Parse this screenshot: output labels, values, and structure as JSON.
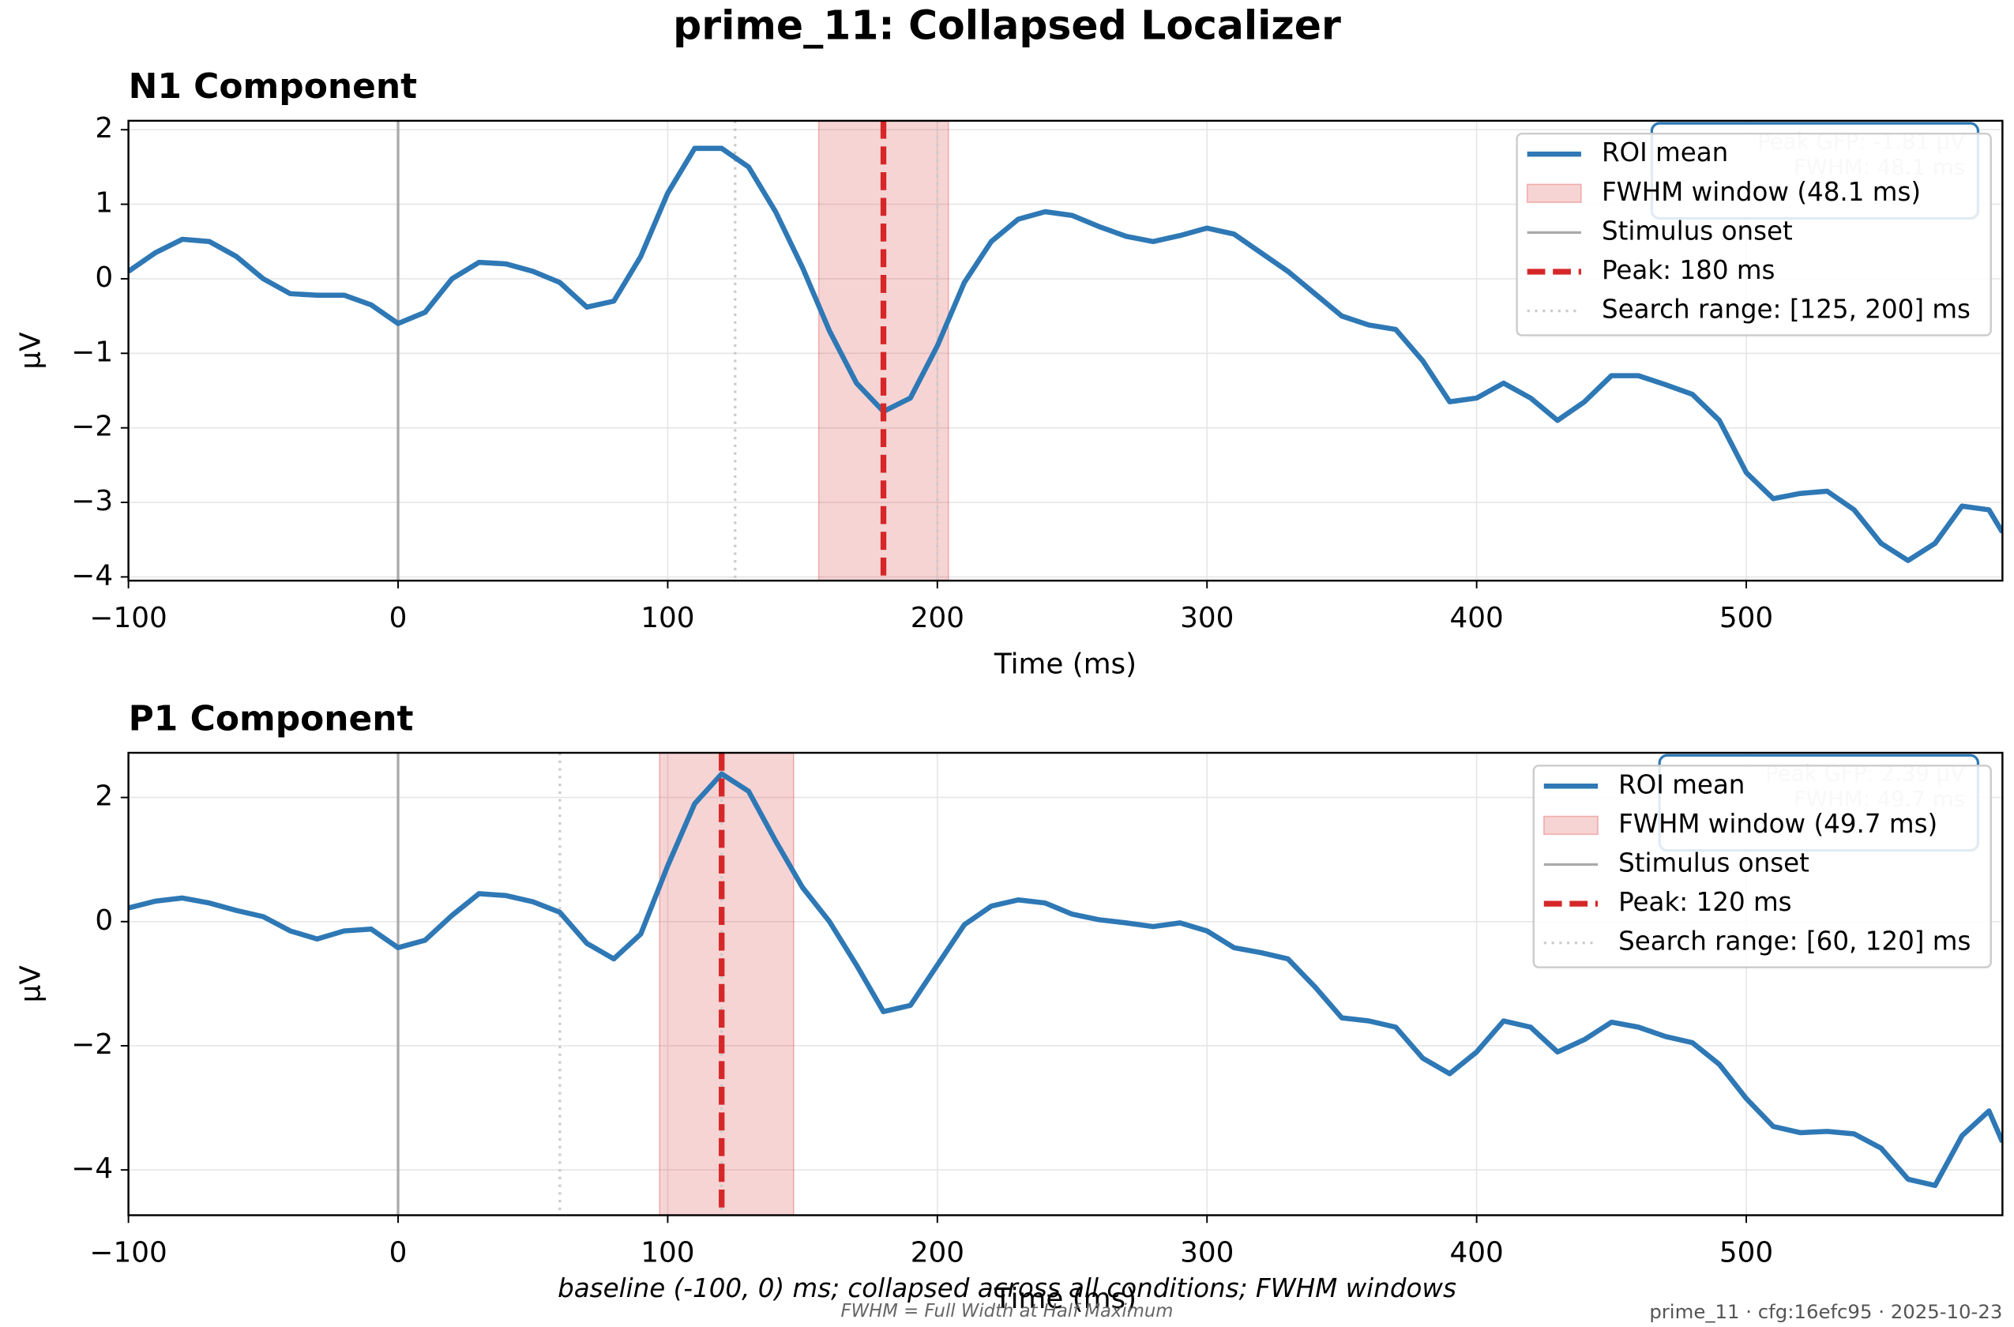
{
  "suptitle": "prime_11: Collapsed Localizer",
  "caption": "baseline (-100, 0) ms; collapsed across all conditions; FWHM windows",
  "footnote": "FWHM = Full Width at Half Maximum",
  "stamp": "prime_11 · cfg:16efc95 · 2025-10-23",
  "chart_data": [
    {
      "type": "line",
      "title": "N1 Component",
      "xlabel": "Time (ms)",
      "ylabel": "µV",
      "x": [
        -100,
        -90,
        -80,
        -70,
        -60,
        -50,
        -40,
        -30,
        -20,
        -10,
        0,
        10,
        20,
        30,
        40,
        50,
        60,
        70,
        80,
        90,
        100,
        110,
        120,
        130,
        140,
        150,
        160,
        170,
        180,
        190,
        200,
        210,
        220,
        230,
        240,
        250,
        260,
        270,
        280,
        290,
        300,
        310,
        320,
        330,
        340,
        350,
        360,
        370,
        380,
        390,
        400,
        410,
        420,
        430,
        440,
        450,
        460,
        470,
        480,
        490,
        500,
        510,
        520,
        530,
        540,
        550,
        560,
        570,
        580,
        590,
        595
      ],
      "series": [
        {
          "name": "ROI mean",
          "color": "#2e78b5",
          "values": [
            0.1,
            0.35,
            0.53,
            0.5,
            0.3,
            0.0,
            -0.2,
            -0.22,
            -0.22,
            -0.35,
            -0.6,
            -0.45,
            0.0,
            0.22,
            0.2,
            0.1,
            -0.05,
            -0.38,
            -0.3,
            0.3,
            1.15,
            1.75,
            1.75,
            1.5,
            0.9,
            0.15,
            -0.7,
            -1.4,
            -1.78,
            -1.6,
            -0.9,
            -0.05,
            0.5,
            0.8,
            0.9,
            0.85,
            0.7,
            0.57,
            0.5,
            0.58,
            0.68,
            0.6,
            0.35,
            0.1,
            -0.2,
            -0.5,
            -0.62,
            -0.68,
            -1.1,
            -1.65,
            -1.6,
            -1.4,
            -1.6,
            -1.9,
            -1.65,
            -1.3,
            -1.3,
            -1.42,
            -1.55,
            -1.9,
            -2.6,
            -2.95,
            -2.88,
            -2.85,
            -3.1,
            -3.55,
            -3.78,
            -3.55,
            -3.05,
            -3.1,
            -3.4
          ]
        }
      ],
      "fwhm_window": {
        "range": [
          156,
          204.1
        ],
        "label": "FWHM window (48.1 ms)",
        "color": "#d62728"
      },
      "onset": {
        "x": 0,
        "label": "Stimulus onset",
        "color": "#aaaaaa"
      },
      "peak": {
        "x": 180,
        "label": "Peak: 180 ms",
        "color": "#d62728"
      },
      "search_range": {
        "range": [
          125,
          200
        ],
        "label": "Search range: [125, 200] ms",
        "color": "#cccccc"
      },
      "annotation": [
        "Peak GFP: -1.81 µV",
        "FWHM: 48.1 ms"
      ],
      "xlim": [
        -100,
        595
      ],
      "xticks": [
        {
          "value": -100,
          "label": "−100"
        },
        0,
        100,
        200,
        300,
        400,
        500
      ],
      "ylim": [
        -4.05,
        2.12
      ],
      "yticks": [
        {
          "value": -4,
          "label": "−4"
        },
        {
          "value": -3,
          "label": "−3"
        },
        {
          "value": -2,
          "label": "−2"
        },
        {
          "value": -1,
          "label": "−1"
        },
        0,
        1,
        2
      ],
      "grid": true,
      "legend": "upper right"
    },
    {
      "type": "line",
      "title": "P1 Component",
      "xlabel": "Time (ms)",
      "ylabel": "µV",
      "x": [
        -100,
        -90,
        -80,
        -70,
        -60,
        -50,
        -40,
        -30,
        -20,
        -10,
        0,
        10,
        20,
        30,
        40,
        50,
        60,
        70,
        80,
        90,
        100,
        110,
        120,
        130,
        140,
        150,
        160,
        170,
        180,
        190,
        200,
        210,
        220,
        230,
        240,
        250,
        260,
        270,
        280,
        290,
        300,
        310,
        320,
        330,
        340,
        350,
        360,
        370,
        380,
        390,
        400,
        410,
        420,
        430,
        440,
        450,
        460,
        470,
        480,
        490,
        500,
        510,
        520,
        530,
        540,
        550,
        560,
        570,
        580,
        590,
        595
      ],
      "series": [
        {
          "name": "ROI mean",
          "color": "#2e78b5",
          "values": [
            0.22,
            0.33,
            0.38,
            0.3,
            0.18,
            0.08,
            -0.15,
            -0.28,
            -0.15,
            -0.12,
            -0.42,
            -0.3,
            0.1,
            0.45,
            0.42,
            0.32,
            0.15,
            -0.35,
            -0.6,
            -0.2,
            0.9,
            1.9,
            2.38,
            2.1,
            1.3,
            0.55,
            0.0,
            -0.7,
            -1.45,
            -1.35,
            -0.7,
            -0.05,
            0.25,
            0.35,
            0.3,
            0.12,
            0.03,
            -0.02,
            -0.08,
            -0.02,
            -0.15,
            -0.42,
            -0.5,
            -0.6,
            -1.05,
            -1.55,
            -1.6,
            -1.7,
            -2.2,
            -2.45,
            -2.1,
            -1.6,
            -1.7,
            -2.1,
            -1.9,
            -1.62,
            -1.7,
            -1.85,
            -1.95,
            -2.3,
            -2.85,
            -3.3,
            -3.4,
            -3.38,
            -3.42,
            -3.65,
            -4.15,
            -4.25,
            -3.45,
            -3.05,
            -3.55
          ]
        }
      ],
      "fwhm_window": {
        "range": [
          97,
          146.7
        ],
        "label": "FWHM window (49.7 ms)",
        "color": "#d62728"
      },
      "onset": {
        "x": 0,
        "label": "Stimulus onset",
        "color": "#aaaaaa"
      },
      "peak": {
        "x": 120,
        "label": "Peak: 120 ms",
        "color": "#d62728"
      },
      "search_range": {
        "range": [
          60,
          120
        ],
        "label": "Search range: [60, 120] ms",
        "color": "#cccccc"
      },
      "annotation": [
        "Peak GFP: 2.39 µV",
        "FWHM: 49.7 ms"
      ],
      "xlim": [
        -100,
        595
      ],
      "xticks": [
        {
          "value": -100,
          "label": "−100"
        },
        0,
        100,
        200,
        300,
        400,
        500
      ],
      "ylim": [
        -4.73,
        2.72
      ],
      "yticks": [
        {
          "value": -4,
          "label": "−4"
        },
        {
          "value": -2,
          "label": "−2"
        },
        0,
        2
      ],
      "grid": true,
      "legend": "upper right"
    }
  ]
}
